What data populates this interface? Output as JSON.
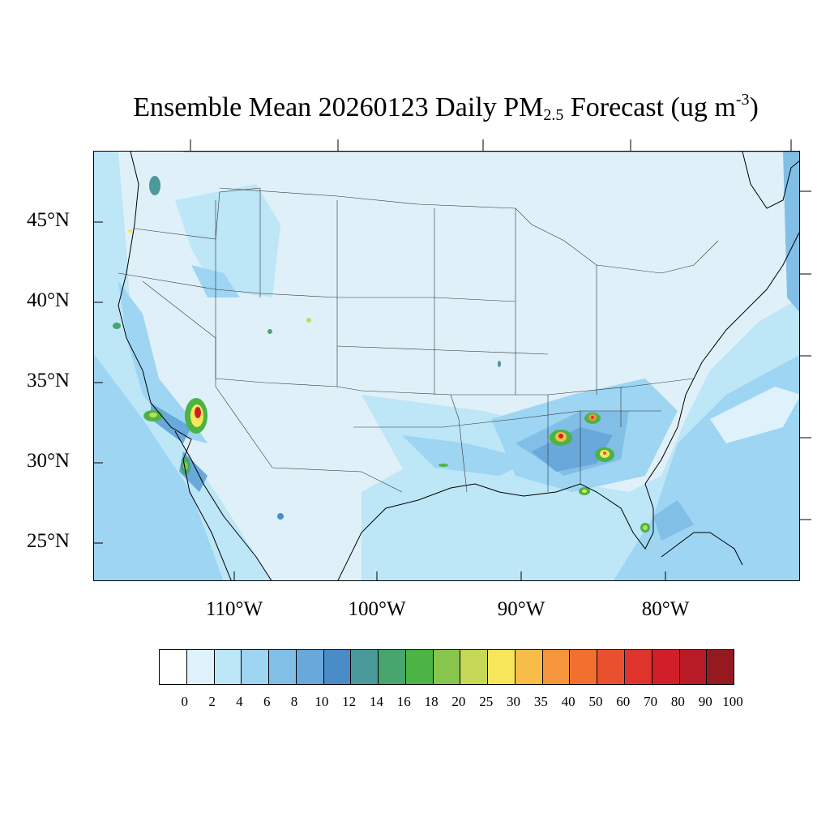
{
  "title": {
    "prefix": "Ensemble Mean 20260123 Daily PM",
    "subscript": "2.5",
    "middle": " Forecast (ug m",
    "superscript": "-3",
    "suffix": ")"
  },
  "lat_labels": [
    "45°N",
    "40°N",
    "35°N",
    "30°N",
    "25°N"
  ],
  "lon_labels": [
    "110°W",
    "100°W",
    "90°W",
    "80°W"
  ],
  "colorbar": {
    "labels": [
      "0",
      "2",
      "4",
      "6",
      "8",
      "10",
      "12",
      "14",
      "16",
      "18",
      "20",
      "25",
      "30",
      "35",
      "40",
      "50",
      "60",
      "70",
      "80",
      "90",
      "100"
    ],
    "colors": [
      "#ffffff",
      "#dff2fb",
      "#bde6f7",
      "#9dd5f3",
      "#82bfe6",
      "#69a8da",
      "#4a8cc8",
      "#4a9a9c",
      "#47a56e",
      "#4cb445",
      "#87c54d",
      "#c6d957",
      "#f8e65a",
      "#f7bd48",
      "#f5953c",
      "#f2702f",
      "#e9512e",
      "#df342b",
      "#d11f2a",
      "#b81b25",
      "#951a1f"
    ]
  },
  "map": {
    "background_color": "#dff0f9",
    "hotspots": [
      {
        "name": "las-vegas-hotspot",
        "level": "70-90"
      },
      {
        "name": "atlanta-hotspot",
        "level": "35-60"
      },
      {
        "name": "birmingham-hotspot",
        "level": "35-60"
      },
      {
        "name": "macon-hotspot",
        "level": "30-50"
      },
      {
        "name": "los-angeles-hotspot",
        "level": "16-25"
      },
      {
        "name": "baja-hotspot",
        "level": "16-25"
      },
      {
        "name": "tallahassee-hotspot",
        "level": "25-35"
      },
      {
        "name": "miami-hotspot",
        "level": "20-30"
      }
    ]
  }
}
